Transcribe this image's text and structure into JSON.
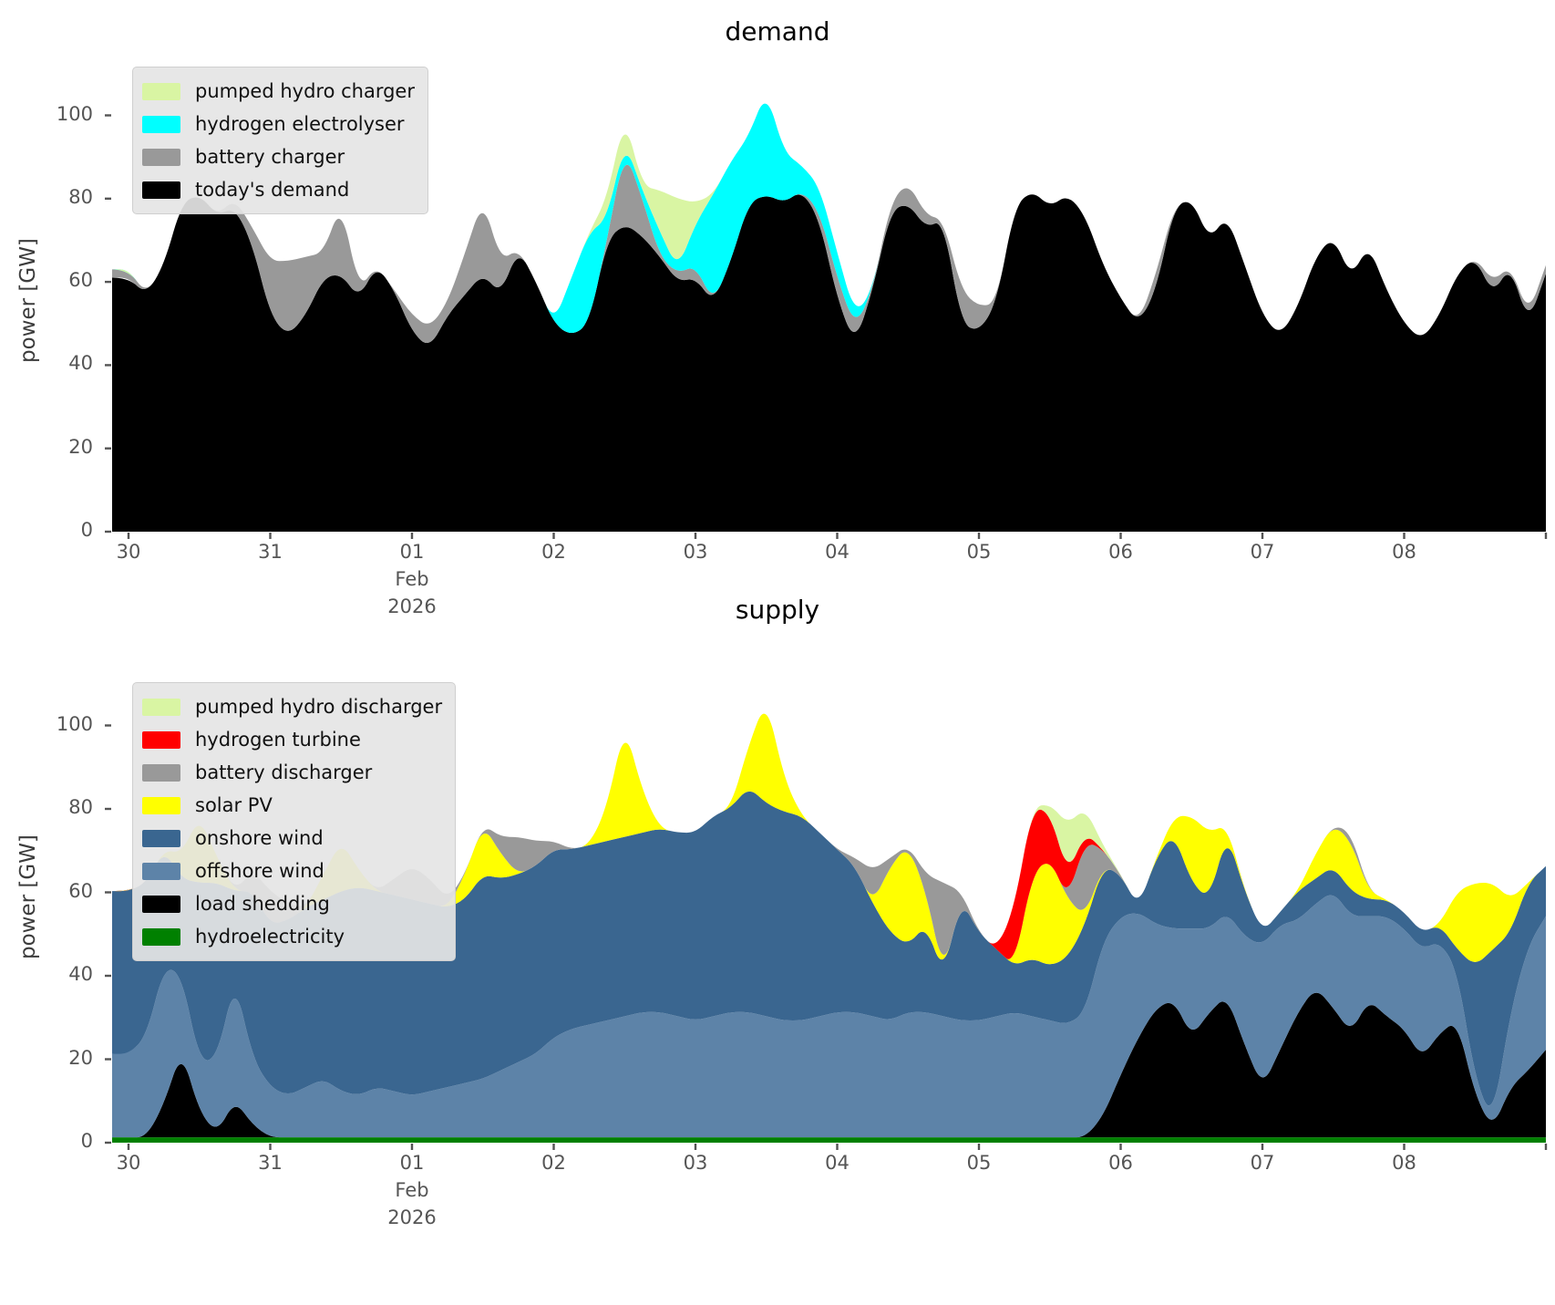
{
  "figure": {
    "bg": "#ffffff",
    "text_color": "#555555",
    "tick_color": "#555555"
  },
  "charts": [
    {
      "title": "demand",
      "ylabel": "power [GW]",
      "yticks": [
        0,
        20,
        40,
        60,
        80,
        100
      ],
      "xtick_labels": [
        "30",
        "31",
        "01",
        "02",
        "03",
        "04",
        "05",
        "06",
        "07",
        "08"
      ],
      "x_month_label": "Feb",
      "x_year_label": "2026",
      "legend_note": "legend lists series top-of-stack first"
    },
    {
      "title": "supply",
      "ylabel": "power [GW]",
      "yticks": [
        0,
        20,
        40,
        60,
        80,
        100
      ],
      "xtick_labels": [
        "30",
        "31",
        "01",
        "02",
        "03",
        "04",
        "05",
        "06",
        "07",
        "08"
      ],
      "x_month_label": "Feb",
      "x_year_label": "2026",
      "legend_note": "legend lists series top-of-stack first"
    }
  ],
  "chart_data": [
    {
      "type": "area",
      "stacked": true,
      "title": "demand",
      "ylabel": "power [GW]",
      "ylim": [
        0,
        114.5
      ],
      "x_axis": {
        "unit": "days since 2026-01-30 00:00",
        "x0": 0,
        "dx": 0.125,
        "n": 81,
        "xlim": [
          -0.116,
          10.0
        ],
        "tick_days": [
          0,
          1,
          2,
          3,
          4,
          5,
          6,
          7,
          8,
          9
        ],
        "tick_labels": [
          "30",
          "31",
          "01",
          "02",
          "03",
          "04",
          "05",
          "06",
          "07",
          "08"
        ],
        "month_year_under_tick": 2,
        "month": "Feb",
        "year": "2026"
      },
      "grid": false,
      "legend_position": "upper left",
      "series": [
        {
          "name": "today's demand",
          "color": "#000000",
          "values": [
            61,
            57,
            64,
            79,
            81,
            76,
            78,
            69,
            52,
            47,
            52,
            61,
            62,
            56,
            64,
            58,
            48,
            44,
            52,
            57,
            62,
            57,
            68,
            60,
            50,
            47,
            50,
            70,
            74,
            71,
            66,
            60,
            61,
            55,
            65,
            79,
            81,
            79,
            82,
            75,
            56,
            45,
            58,
            77,
            79,
            73,
            75,
            50,
            48,
            55,
            78,
            82,
            78,
            81,
            76,
            64,
            56,
            50,
            58,
            78,
            80,
            70,
            76,
            64,
            52,
            47,
            54,
            66,
            71,
            61,
            69,
            58,
            50,
            46,
            52,
            62,
            66,
            57,
            64,
            50,
            62
          ]
        },
        {
          "name": "battery charger",
          "color": "#999999",
          "values": [
            2,
            0,
            0,
            0,
            0,
            0,
            2,
            4,
            13,
            18,
            14,
            6,
            17,
            2,
            0,
            0,
            4,
            5,
            3,
            10,
            18,
            8,
            0,
            0,
            0,
            0,
            0,
            0,
            18,
            9,
            0,
            2,
            3,
            0,
            0,
            0,
            0,
            0,
            0,
            2,
            5,
            4,
            0,
            2,
            5,
            3,
            0,
            8,
            6,
            0,
            0,
            0,
            0,
            0,
            0,
            0,
            0,
            0,
            4,
            0,
            0,
            0,
            0,
            0,
            0,
            0,
            0,
            0,
            0,
            0,
            0,
            0,
            0,
            0,
            0,
            0,
            0,
            3,
            0,
            2,
            2
          ]
        },
        {
          "name": "hydrogen electrolyser",
          "color": "#00ffff",
          "values": [
            0,
            0,
            0,
            0,
            0,
            0,
            0,
            0,
            0,
            0,
            0,
            0,
            0,
            0,
            0,
            0,
            0,
            0,
            0,
            0,
            0,
            0,
            0,
            0,
            0,
            14,
            22,
            5,
            2,
            2,
            6,
            1,
            10,
            26,
            24,
            16,
            25,
            12,
            6,
            6,
            6,
            3,
            0,
            0,
            0,
            0,
            0,
            0,
            0,
            0,
            0,
            0,
            0,
            0,
            0,
            0,
            0,
            0,
            0,
            0,
            0,
            0,
            0,
            0,
            0,
            0,
            0,
            0,
            0,
            0,
            0,
            0,
            0,
            0,
            0,
            0,
            0,
            0,
            0,
            0,
            0
          ]
        },
        {
          "name": "pumped hydro charger",
          "color": "#d9f5a3",
          "values": [
            0,
            0,
            0,
            0,
            0,
            0,
            0,
            0,
            0,
            0,
            0,
            0,
            0,
            0,
            0,
            0,
            0,
            0,
            0,
            0,
            0,
            0,
            0,
            0,
            0,
            0,
            0,
            5,
            6,
            1,
            10,
            17,
            5,
            0,
            0,
            0,
            0,
            0,
            0,
            0,
            0,
            0,
            0,
            0,
            0,
            0,
            0,
            0,
            0,
            0,
            0,
            0,
            0,
            0,
            0,
            0,
            0,
            0,
            0,
            0,
            0,
            0,
            0,
            0,
            0,
            0,
            0,
            0,
            0,
            0,
            0,
            0,
            0,
            0,
            0,
            0,
            0,
            0,
            0,
            0,
            0
          ]
        }
      ]
    },
    {
      "type": "area",
      "stacked": true,
      "title": "supply",
      "ylabel": "power [GW]",
      "ylim": [
        0,
        121
      ],
      "x_axis": {
        "unit": "days since 2026-01-30 00:00",
        "x0": 0,
        "dx": 0.125,
        "n": 81,
        "xlim": [
          -0.116,
          10.0
        ],
        "tick_days": [
          0,
          1,
          2,
          3,
          4,
          5,
          6,
          7,
          8,
          9
        ],
        "tick_labels": [
          "30",
          "31",
          "01",
          "02",
          "03",
          "04",
          "05",
          "06",
          "07",
          "08"
        ],
        "month_year_under_tick": 2,
        "month": "Feb",
        "year": "2026"
      },
      "grid": false,
      "legend_position": "upper left",
      "series": [
        {
          "name": "hydroelectricity",
          "color": "#008000",
          "values": [
            1.3,
            1.3,
            1.3,
            1.3,
            1.3,
            1.3,
            1.3,
            1.3,
            1.3,
            1.3,
            1.3,
            1.3,
            1.3,
            1.3,
            1.3,
            1.3,
            1.3,
            1.3,
            1.3,
            1.3,
            1.3,
            1.3,
            1.3,
            1.3,
            1.3,
            1.3,
            1.3,
            1.3,
            1.3,
            1.3,
            1.3,
            1.3,
            1.3,
            1.3,
            1.3,
            1.3,
            1.3,
            1.3,
            1.3,
            1.3,
            1.3,
            1.3,
            1.3,
            1.3,
            1.3,
            1.3,
            1.3,
            1.3,
            1.3,
            1.3,
            1.3,
            1.3,
            1.3,
            1.3,
            1.3,
            1.3,
            1.3,
            1.3,
            1.3,
            1.3,
            1.3,
            1.3,
            1.3,
            1.3,
            1.3,
            1.3,
            1.3,
            1.3,
            1.3,
            1.3,
            1.3,
            1.3,
            1.3,
            1.3,
            1.3,
            1.3,
            1.3,
            1.3,
            1.3,
            1.3,
            1.3
          ]
        },
        {
          "name": "load shedding",
          "color": "#000000",
          "values": [
            0,
            0,
            8,
            21,
            6,
            1,
            9,
            3,
            0,
            0,
            0,
            0,
            0,
            0,
            0,
            0,
            0,
            0,
            0,
            0,
            0,
            0,
            0,
            0,
            0,
            0,
            0,
            0,
            0,
            0,
            0,
            0,
            0,
            0,
            0,
            0,
            0,
            0,
            0,
            0,
            0,
            0,
            0,
            0,
            0,
            0,
            0,
            0,
            0,
            0,
            0,
            0,
            0,
            0,
            0,
            5,
            15,
            24,
            31,
            33,
            24,
            30,
            34,
            22,
            12,
            21,
            30,
            36,
            31,
            25,
            33,
            29,
            26,
            19,
            25,
            28,
            10,
            2,
            12,
            16,
            21
          ]
        },
        {
          "name": "offshore wind",
          "color": "#5d83a8",
          "values": [
            20,
            24,
            33,
            18,
            12,
            18,
            29,
            16,
            12,
            10,
            12,
            14,
            11,
            10,
            12,
            11,
            10,
            11,
            12,
            13,
            14,
            16,
            18,
            20,
            24,
            26,
            27,
            28,
            29,
            30,
            30,
            29,
            28,
            29,
            30,
            30,
            29,
            28,
            28,
            29,
            30,
            30,
            29,
            28,
            30,
            30,
            29,
            28,
            28,
            29,
            30,
            29,
            28,
            27,
            30,
            42,
            38,
            30,
            20,
            17,
            26,
            20,
            20,
            26,
            34,
            30,
            22,
            20,
            28,
            28,
            20,
            24,
            24,
            26,
            22,
            12,
            4,
            2,
            18,
            30,
            32
          ]
        },
        {
          "name": "onshore wind",
          "color": "#3a6690",
          "values": [
            39,
            37,
            28,
            23,
            43,
            42,
            21,
            40,
            39,
            42,
            43,
            43,
            48,
            50,
            47,
            47,
            47,
            45,
            43,
            44,
            49,
            46,
            45,
            45,
            45,
            43,
            43,
            43,
            43,
            43,
            44,
            44,
            45,
            48,
            49,
            54,
            51,
            50,
            49,
            44,
            39,
            35,
            27,
            21,
            16,
            21,
            10,
            29,
            21,
            16,
            11,
            14,
            13,
            16,
            21,
            18,
            10,
            1,
            16,
            23,
            11,
            7,
            19,
            11,
            3,
            3,
            7,
            6,
            6,
            6,
            4,
            4,
            4,
            4,
            4,
            5,
            27,
            41,
            19,
            15,
            12
          ]
        },
        {
          "name": "solar PV",
          "color": "#ffff00",
          "values": [
            0,
            0,
            0,
            6,
            16,
            6,
            0,
            0,
            0,
            0,
            0,
            6,
            12,
            4,
            0,
            0,
            0,
            0,
            0,
            6,
            12,
            6,
            0,
            0,
            0,
            0,
            0,
            8,
            27,
            10,
            0,
            0,
            0,
            0,
            0,
            10,
            25,
            8,
            0,
            0,
            0,
            0,
            0,
            16,
            24,
            8,
            0,
            0,
            0,
            0,
            0,
            20,
            26,
            14,
            2,
            0,
            0,
            0,
            0,
            4,
            16,
            16,
            2,
            0,
            0,
            0,
            0,
            6,
            10,
            12,
            2,
            0,
            0,
            0,
            0,
            14,
            20,
            16,
            8,
            0,
            0
          ]
        },
        {
          "name": "battery discharger",
          "color": "#999999",
          "values": [
            0,
            0,
            0,
            0,
            0,
            0,
            0,
            5,
            8,
            4,
            0,
            0,
            0,
            0,
            0,
            4,
            8,
            6,
            2,
            0,
            0,
            4,
            9,
            6,
            2,
            0,
            0,
            0,
            0,
            0,
            0,
            0,
            0,
            0,
            0,
            0,
            0,
            0,
            0,
            0,
            0,
            2,
            8,
            2,
            0,
            4,
            22,
            2,
            0,
            0,
            0,
            0,
            0,
            0,
            18,
            4,
            0,
            0,
            0,
            0,
            0,
            0,
            0,
            0,
            0,
            0,
            0,
            0,
            0,
            2,
            0,
            0,
            0,
            0,
            0,
            0,
            0,
            0,
            0,
            0,
            0
          ]
        },
        {
          "name": "hydrogen turbine",
          "color": "#ff0000",
          "values": [
            0,
            0,
            0,
            0,
            0,
            0,
            0,
            0,
            0,
            0,
            0,
            0,
            0,
            0,
            0,
            0,
            0,
            0,
            0,
            0,
            0,
            0,
            0,
            0,
            0,
            0,
            0,
            0,
            0,
            0,
            0,
            0,
            0,
            0,
            0,
            0,
            0,
            0,
            0,
            0,
            0,
            0,
            0,
            0,
            0,
            0,
            0,
            0,
            0,
            0,
            14,
            16,
            11,
            6,
            2,
            0,
            0,
            0,
            0,
            0,
            0,
            0,
            0,
            0,
            0,
            0,
            0,
            0,
            0,
            0,
            0,
            0,
            0,
            0,
            0,
            0,
            0,
            0,
            0,
            0,
            0
          ]
        },
        {
          "name": "pumped hydro discharger",
          "color": "#d9f5a3",
          "values": [
            0,
            0,
            0,
            0,
            0,
            0,
            0,
            0,
            0,
            0,
            0,
            0,
            0,
            0,
            0,
            0,
            0,
            0,
            0,
            0,
            0,
            0,
            0,
            0,
            0,
            0,
            0,
            0,
            0,
            0,
            0,
            0,
            0,
            0,
            0,
            0,
            0,
            0,
            0,
            0,
            0,
            0,
            0,
            0,
            0,
            0,
            0,
            0,
            0,
            0,
            0,
            0,
            2,
            12,
            6,
            1,
            0,
            0,
            0,
            0,
            0,
            0,
            0,
            0,
            0,
            0,
            0,
            0,
            0,
            0,
            0,
            0,
            0,
            0,
            0,
            0,
            0,
            0,
            0,
            0,
            0
          ]
        }
      ]
    }
  ]
}
